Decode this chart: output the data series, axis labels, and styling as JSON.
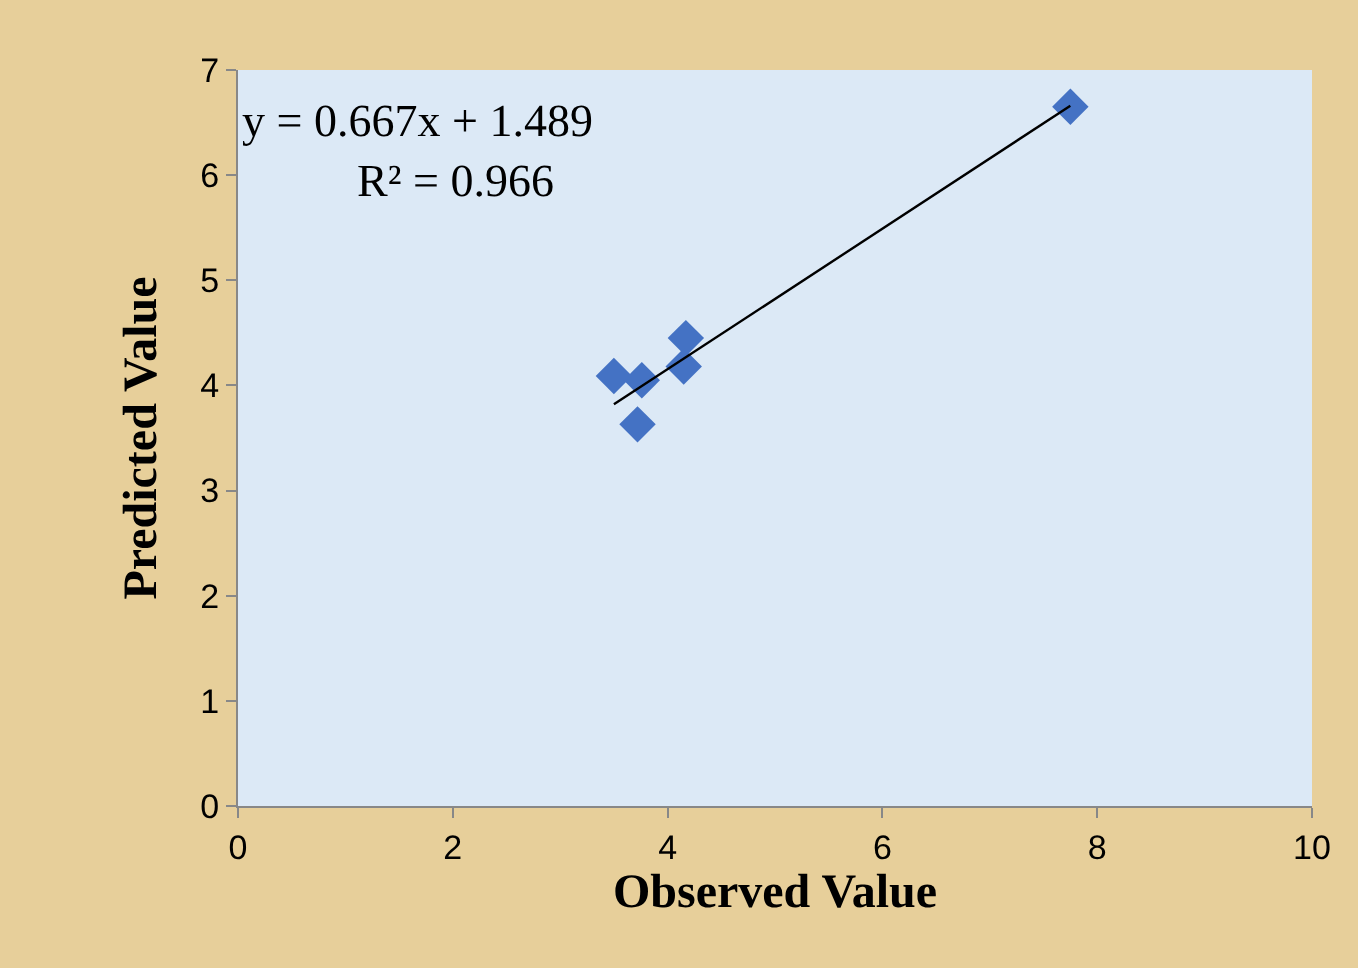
{
  "chart_data": {
    "type": "scatter",
    "xlabel": "Observed Value",
    "ylabel": "Predicted Value",
    "annotations": [
      "y = 0.667x + 1.489",
      "R² = 0.966"
    ],
    "series": [
      {
        "color": "#4472c4",
        "marker": "diamond",
        "x": [
          3.5,
          3.76,
          4.17,
          4.15,
          3.72,
          7.75
        ],
        "values": [
          4.09,
          4.05,
          4.45,
          4.18,
          3.63,
          6.65
        ]
      },
      {
        "type": "line",
        "color": "#000000",
        "marker": "none",
        "x": [
          3.5,
          7.75
        ],
        "values": [
          3.82,
          6.66
        ]
      }
    ],
    "xlim": [
      0,
      10
    ],
    "xticks": [
      0,
      2,
      4,
      6,
      8,
      10
    ],
    "ylim": [
      0,
      7
    ],
    "yticks": [
      0,
      1,
      2,
      3,
      4,
      5,
      6,
      7
    ],
    "grid": false
  }
}
